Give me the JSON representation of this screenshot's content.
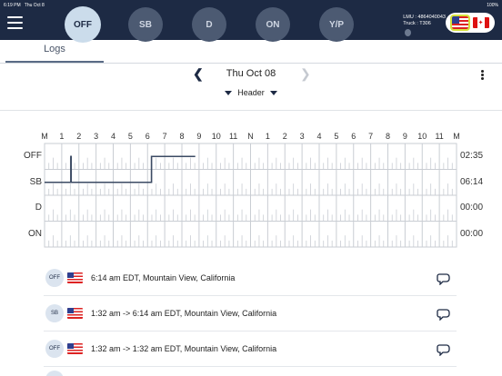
{
  "status_bar": {
    "time": "6:19 PM",
    "date": "Thu Oct 8",
    "battery": "100%"
  },
  "duty_status": {
    "active": "OFF",
    "buttons": [
      "OFF",
      "SB",
      "D",
      "ON",
      "Y/P"
    ]
  },
  "unit_info": {
    "lmu": "LMU : 4864040043",
    "truck": "Truck : T306"
  },
  "tabs": {
    "logs": "Logs"
  },
  "date_nav": {
    "date": "Thu Oct 08",
    "prev_icon": "chevron-left-icon",
    "next_icon": "chevron-right-icon"
  },
  "header_selector": {
    "label": "Header"
  },
  "graph": {
    "hour_labels": [
      "M",
      "1",
      "2",
      "3",
      "4",
      "5",
      "6",
      "7",
      "8",
      "9",
      "10",
      "11",
      "N",
      "1",
      "2",
      "3",
      "4",
      "5",
      "6",
      "7",
      "8",
      "9",
      "10",
      "11",
      "M"
    ],
    "rows": [
      "OFF",
      "SB",
      "D",
      "ON"
    ],
    "totals": [
      "02:35",
      "06:14",
      "00:00",
      "00:00"
    ],
    "segments": [
      {
        "status": "SB",
        "start_hour": 0,
        "end_hour": 1.53
      },
      {
        "status": "OFF",
        "start_hour": 1.53,
        "end_hour": 1.55
      },
      {
        "status": "SB",
        "start_hour": 1.55,
        "end_hour": 6.23
      },
      {
        "status": "OFF",
        "start_hour": 6.23,
        "end_hour": 8.78
      }
    ]
  },
  "events": [
    {
      "badge": "OFF",
      "text": "6:14 am EDT, Mountain View, California"
    },
    {
      "badge": "SB",
      "text": "1:32 am -> 6:14 am EDT, Mountain View, California"
    },
    {
      "badge": "OFF",
      "text": "1:32 am -> 1:32 am EDT, Mountain View, California"
    }
  ]
}
